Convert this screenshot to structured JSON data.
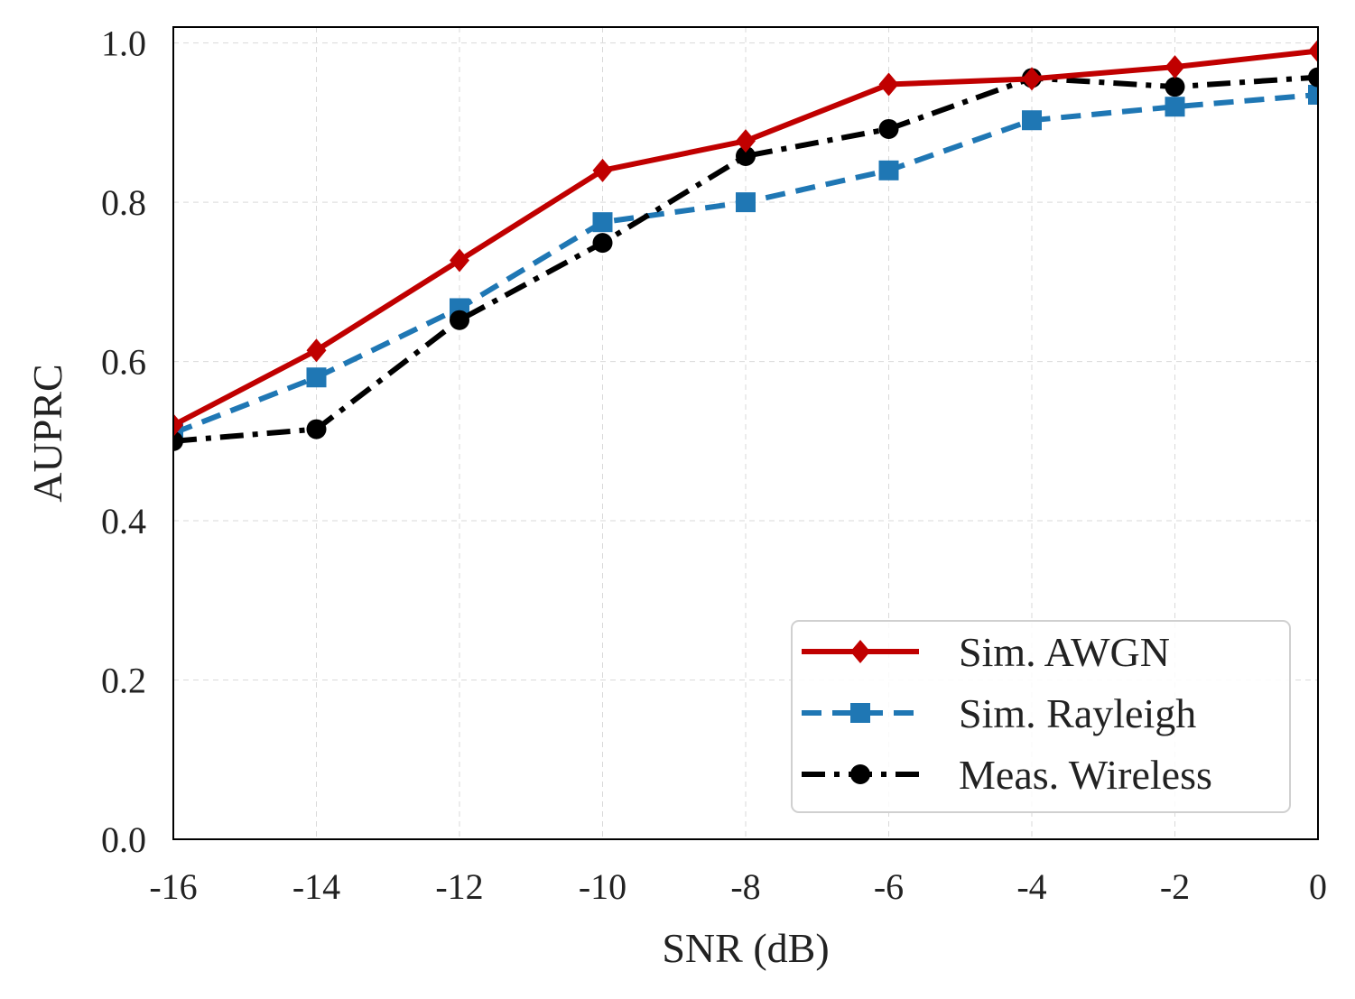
{
  "chart_data": {
    "type": "line",
    "xlabel": "SNR (dB)",
    "ylabel": "AUPRC",
    "x": [
      -16,
      -14,
      -12,
      -10,
      -8,
      -6,
      -4,
      -2,
      0
    ],
    "xlim": [
      -16,
      0
    ],
    "ylim": [
      0.0,
      1.02
    ],
    "xticks": [
      -16,
      -14,
      -12,
      -10,
      -8,
      -6,
      -4,
      -2,
      0
    ],
    "xtick_labels": [
      "-16",
      "-14",
      "-12",
      "-10",
      "-8",
      "-6",
      "-4",
      "-2",
      "0"
    ],
    "yticks": [
      0.0,
      0.2,
      0.4,
      0.6,
      0.8,
      1.0
    ],
    "ytick_labels": [
      "0.0",
      "0.2",
      "0.4",
      "0.6",
      "0.8",
      "1.0"
    ],
    "grid": true,
    "legend_position": "bottom-right",
    "series": [
      {
        "name": "Sim. AWGN",
        "values": [
          0.52,
          0.614,
          0.727,
          0.84,
          0.877,
          0.948,
          0.955,
          0.97,
          0.99
        ],
        "color": "#c00000",
        "marker": "diamond",
        "line_style": "solid"
      },
      {
        "name": "Sim. Rayleigh",
        "values": [
          0.51,
          0.58,
          0.667,
          0.775,
          0.8,
          0.84,
          0.903,
          0.92,
          0.935
        ],
        "color": "#1f77b4",
        "marker": "square",
        "line_style": "dashed"
      },
      {
        "name": "Meas. Wireless",
        "values": [
          0.5,
          0.515,
          0.652,
          0.749,
          0.858,
          0.892,
          0.956,
          0.945,
          0.957
        ],
        "color": "#000000",
        "marker": "circle",
        "line_style": "dashdot"
      }
    ]
  }
}
